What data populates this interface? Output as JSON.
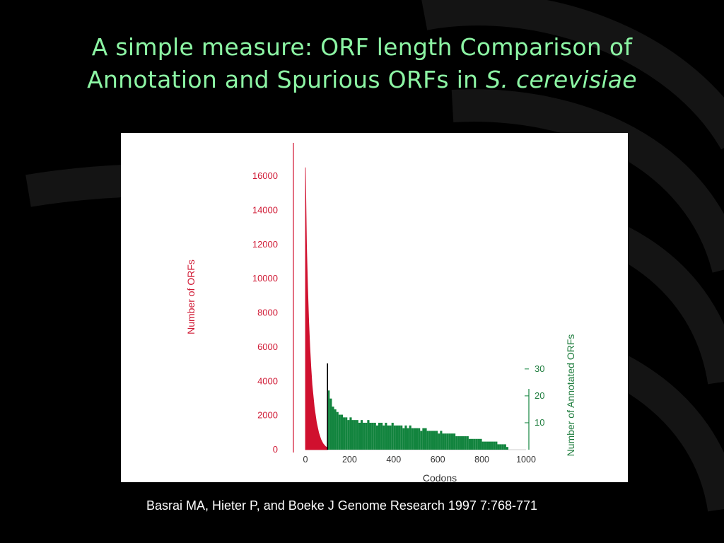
{
  "slide": {
    "title_part1": "A simple measure: ORF length Comparison of Annotation and Spurious ORFs in ",
    "title_italic": "S. cerevisiae",
    "citation": "Basrai MA, Hieter P, and Boeke J  Genome Research 1997 7:768-771"
  },
  "colors": {
    "background": "#000000",
    "title": "#8cf5a4",
    "spurious": "#d0102e",
    "annotated": "#12843e",
    "marker": "#000000"
  },
  "chart_data": {
    "type": "bar",
    "xlabel": "Codons",
    "ylabel_left": "Number of ORFs",
    "ylabel_right": "Number of Annotated ORFs",
    "x_ticks": [
      0,
      200,
      400,
      600,
      800,
      1000
    ],
    "y_left_ticks": [
      0,
      2000,
      4000,
      6000,
      8000,
      10000,
      12000,
      14000,
      16000
    ],
    "y_right_ticks": [
      10,
      20,
      30
    ],
    "xlim": [
      0,
      1000
    ],
    "ylim_left": [
      0,
      16000
    ],
    "ylim_right": [
      0,
      36
    ],
    "cutoff_marker_x": 100,
    "series": [
      {
        "name": "Number of ORFs",
        "axis": "left",
        "x": [
          0,
          5,
          10,
          15,
          20,
          25,
          30,
          40,
          50,
          60,
          70,
          80,
          90,
          100
        ],
        "values": [
          16500,
          12000,
          9500,
          7500,
          6000,
          4800,
          3800,
          2500,
          1600,
          1000,
          600,
          350,
          200,
          100
        ]
      },
      {
        "name": "Number of Annotated ORFs",
        "axis": "right",
        "x_start": 100,
        "x_step": 10,
        "values": [
          22,
          19,
          16,
          15,
          14,
          13,
          13,
          12,
          12,
          11,
          12,
          11,
          11,
          11,
          10,
          11,
          10,
          10,
          11,
          10,
          10,
          10,
          9,
          10,
          10,
          9,
          10,
          9,
          9,
          10,
          9,
          9,
          9,
          9,
          8,
          9,
          8,
          9,
          8,
          8,
          8,
          8,
          7,
          8,
          8,
          7,
          7,
          7,
          7,
          7,
          6,
          7,
          6,
          6,
          6,
          6,
          6,
          6,
          5,
          5,
          5,
          5,
          5,
          5,
          4,
          4,
          4,
          4,
          4,
          4,
          3,
          3,
          3,
          3,
          3,
          3,
          3,
          2,
          2,
          2,
          2,
          1
        ]
      }
    ]
  }
}
